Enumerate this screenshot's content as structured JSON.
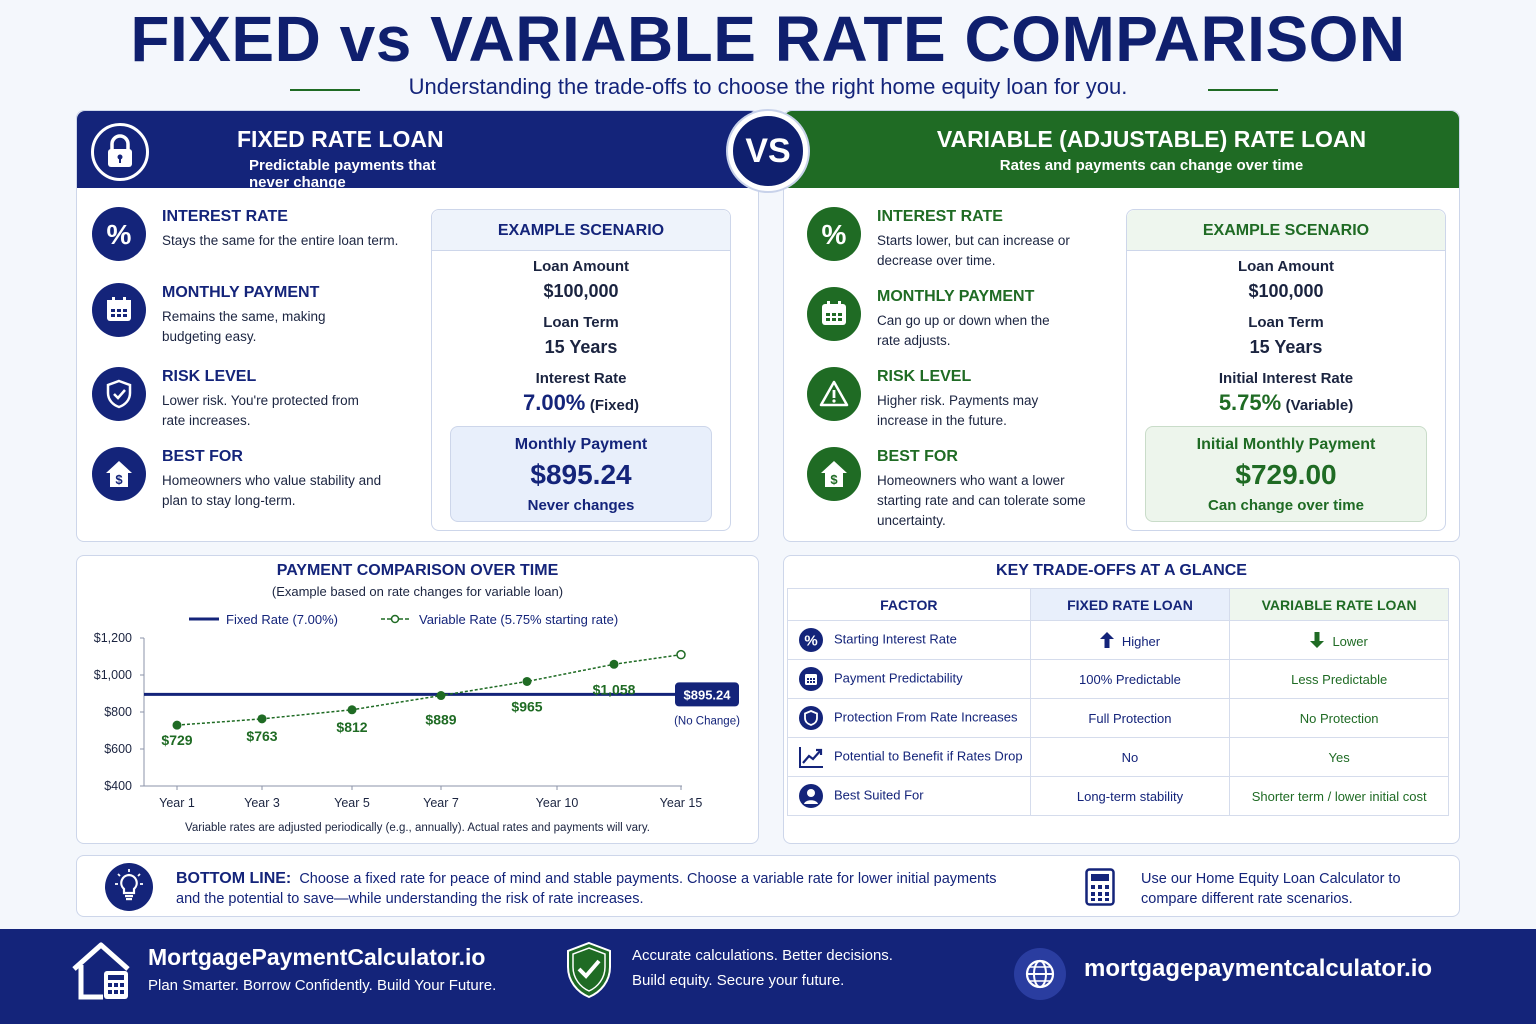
{
  "header": {
    "title": "FIXED vs VARIABLE RATE COMPARISON",
    "subtitle": "Understanding the trade-offs to choose the right home equity loan for you."
  },
  "vs": "VS",
  "fixed": {
    "title": "FIXED RATE LOAN",
    "subtitle": "Predictable payments that never change",
    "features": [
      {
        "icon": "percent-icon",
        "title": "INTEREST RATE",
        "desc": "Stays the same for the entire loan term."
      },
      {
        "icon": "calendar-icon",
        "title": "MONTHLY PAYMENT",
        "desc": "Remains the same, making budgeting easy."
      },
      {
        "icon": "shield-icon",
        "title": "RISK LEVEL",
        "desc": "Lower risk. You're protected from rate increases."
      },
      {
        "icon": "house-dollar-icon",
        "title": "BEST FOR",
        "desc": "Homeowners who value stability and plan to stay long-term."
      }
    ],
    "scenario": {
      "heading": "EXAMPLE SCENARIO",
      "loan_amount_label": "Loan Amount",
      "loan_amount": "$100,000",
      "loan_term_label": "Loan Term",
      "loan_term": "15 Years",
      "rate_label": "Interest Rate",
      "rate": "7.00%",
      "rate_suffix": "(Fixed)",
      "payment_label": "Monthly Payment",
      "payment": "$895.24",
      "payment_note": "Never changes"
    }
  },
  "variable": {
    "title": "VARIABLE (ADJUSTABLE) RATE LOAN",
    "subtitle": "Rates and payments can change over time",
    "features": [
      {
        "icon": "percent-icon",
        "title": "INTEREST RATE",
        "desc": "Starts lower, but can increase or decrease over time."
      },
      {
        "icon": "calendar-icon",
        "title": "MONTHLY PAYMENT",
        "desc": "Can go up or down when the rate adjusts."
      },
      {
        "icon": "warning-icon",
        "title": "RISK LEVEL",
        "desc": "Higher risk. Payments may increase in the future."
      },
      {
        "icon": "house-dollar-icon",
        "title": "BEST FOR",
        "desc": "Homeowners who want a lower starting rate and can tolerate some uncertainty."
      }
    ],
    "scenario": {
      "heading": "EXAMPLE SCENARIO",
      "loan_amount_label": "Loan Amount",
      "loan_amount": "$100,000",
      "loan_term_label": "Loan Term",
      "loan_term": "15 Years",
      "rate_label": "Initial Interest Rate",
      "rate": "5.75%",
      "rate_suffix": "(Variable)",
      "payment_label": "Initial Monthly Payment",
      "payment": "$729.00",
      "payment_note": "Can change over time"
    }
  },
  "chart_data": {
    "type": "line",
    "title": "PAYMENT COMPARISON OVER TIME",
    "subtitle": "(Example based on rate changes for variable loan)",
    "x_ticks": [
      "Year 1",
      "Year 3",
      "Year 5",
      "Year 7",
      "Year 10",
      "Year 15"
    ],
    "y_ticks": [
      "$1,200",
      "$1,000",
      "$800",
      "$600",
      "$400"
    ],
    "ylim": [
      400,
      1200
    ],
    "series": [
      {
        "name": "Fixed Rate (7.00%)",
        "color": "#14247a",
        "values": [
          895.24
        ],
        "end_label": "$895.24",
        "end_note": "(No Change)"
      },
      {
        "name": "Variable Rate (5.75% starting rate)",
        "color": "#1f6b24",
        "points": [
          {
            "year": 1,
            "value": 729,
            "label": "$729"
          },
          {
            "year": 3,
            "value": 763,
            "label": "$763"
          },
          {
            "year": 5,
            "value": 812,
            "label": "$812"
          },
          {
            "year": 7,
            "value": 889,
            "label": "$889"
          },
          {
            "year": 9,
            "value": 965,
            "label": "$965"
          },
          {
            "year": 12,
            "value": 1058,
            "label": "$1,058"
          }
        ],
        "dashed_extension": [
          {
            "year": 12,
            "value": 1058
          },
          {
            "year": 15,
            "value": 1110
          }
        ]
      }
    ],
    "note": "Variable rates are adjusted periodically (e.g., annually). Actual rates and payments will vary."
  },
  "tradeoffs": {
    "title": "KEY TRADE-OFFS AT A GLANCE",
    "headers": [
      "FACTOR",
      "FIXED RATE LOAN",
      "VARIABLE RATE LOAN"
    ],
    "rows": [
      {
        "icon": "percent-icon",
        "factor": "Starting Interest Rate",
        "fixed": "Higher",
        "fixed_icon": "arrow-up-icon",
        "variable": "Lower",
        "variable_icon": "arrow-down-icon"
      },
      {
        "icon": "calendar-icon",
        "factor": "Payment Predictability",
        "fixed": "100% Predictable",
        "variable": "Less Predictable"
      },
      {
        "icon": "shield-icon",
        "factor": "Protection From Rate Increases",
        "fixed": "Full Protection",
        "variable": "No Protection"
      },
      {
        "icon": "trend-up-icon",
        "factor": "Potential to Benefit if Rates Drop",
        "fixed": "No",
        "variable": "Yes"
      },
      {
        "icon": "user-icon",
        "factor": "Best Suited For",
        "fixed": "Long-term stability",
        "variable": "Shorter term / lower initial cost"
      }
    ]
  },
  "bottom_line": {
    "label": "BOTTOM LINE:",
    "text": "Choose a fixed rate for peace of mind and stable payments. Choose a variable rate for lower initial payments and the potential to save—while understanding the risk of rate increases.",
    "cta": "Use our Home Equity Loan Calculator to compare different rate scenarios."
  },
  "footer": {
    "brand": "MortgagePaymentCalculator.io",
    "tagline": "Plan Smarter. Borrow Confidently. Build Your Future.",
    "accuracy_line1": "Accurate calculations. Better decisions.",
    "accuracy_line2": "Build equity. Secure your future.",
    "site": "mortgagepaymentcalculator.io"
  },
  "colors": {
    "navy": "#14247a",
    "green": "#1f6b24",
    "background": "#f4f7fc"
  }
}
